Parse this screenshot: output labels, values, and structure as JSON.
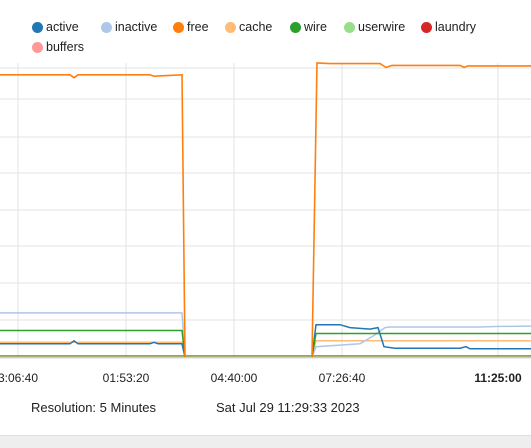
{
  "chart_data": {
    "type": "line",
    "title": "",
    "xlabel": "",
    "ylabel": "",
    "legend_position": "top",
    "grid": true,
    "x_ticks": [
      "3:06:40",
      "01:53:20",
      "04:40:00",
      "07:26:40",
      "11:25:00"
    ],
    "x_ticks_bold": [
      false,
      false,
      false,
      false,
      true
    ],
    "series": [
      {
        "name": "active",
        "color": "#1f77b4",
        "segments": [
          [
            [
              0,
              0.045
            ],
            [
              70,
              0.045
            ],
            [
              74,
              0.055
            ],
            [
              78,
              0.045
            ],
            [
              150,
              0.045
            ],
            [
              154,
              0.05
            ],
            [
              158,
              0.045
            ],
            [
              182,
              0.045
            ],
            [
              185,
              0
            ]
          ],
          [
            [
              312,
              0
            ],
            [
              316,
              0.11
            ],
            [
              340,
              0.11
            ],
            [
              350,
              0.1
            ],
            [
              370,
              0.095
            ],
            [
              378,
              0.1
            ],
            [
              384,
              0.035
            ],
            [
              395,
              0.03
            ],
            [
              460,
              0.03
            ],
            [
              466,
              0.035
            ],
            [
              470,
              0.028
            ],
            [
              531,
              0.028
            ]
          ]
        ]
      },
      {
        "name": "inactive",
        "color": "#aec7e8",
        "segments": [
          [
            [
              0,
              0.15
            ],
            [
              182,
              0.15
            ],
            [
              185,
              0
            ]
          ],
          [
            [
              312,
              0
            ],
            [
              316,
              0.035
            ],
            [
              360,
              0.045
            ],
            [
              375,
              0.075
            ],
            [
              385,
              0.1
            ],
            [
              390,
              0.102
            ],
            [
              480,
              0.102
            ],
            [
              500,
              0.104
            ],
            [
              531,
              0.105
            ]
          ]
        ]
      },
      {
        "name": "free",
        "color": "#ff7f0e",
        "segments": [
          [
            [
              0,
              0.96
            ],
            [
              70,
              0.96
            ],
            [
              74,
              0.95
            ],
            [
              78,
              0.96
            ],
            [
              150,
              0.96
            ],
            [
              154,
              0.955
            ],
            [
              182,
              0.96
            ],
            [
              185,
              0
            ]
          ],
          [
            [
              312,
              0
            ],
            [
              317,
              1.0
            ],
            [
              330,
              0.998
            ],
            [
              380,
              0.998
            ],
            [
              386,
              0.985
            ],
            [
              392,
              0.992
            ],
            [
              460,
              0.992
            ],
            [
              464,
              0.985
            ],
            [
              468,
              0.99
            ],
            [
              531,
              0.99
            ]
          ]
        ]
      },
      {
        "name": "cache",
        "color": "#ffbb78",
        "segments": [
          [
            [
              0,
              0.05
            ],
            [
              182,
              0.05
            ],
            [
              185,
              0
            ]
          ],
          [
            [
              312,
              0
            ],
            [
              316,
              0.055
            ],
            [
              531,
              0.055
            ]
          ]
        ]
      },
      {
        "name": "wire",
        "color": "#2ca02c",
        "segments": [
          [
            [
              0,
              0.09
            ],
            [
              182,
              0.09
            ],
            [
              185,
              0
            ]
          ],
          [
            [
              312,
              0
            ],
            [
              316,
              0.08
            ],
            [
              531,
              0.08
            ]
          ]
        ]
      },
      {
        "name": "userwire",
        "color": "#98df8a",
        "segments": [
          [
            [
              0,
              0.0
            ],
            [
              531,
              0.0
            ]
          ]
        ]
      },
      {
        "name": "laundry",
        "color": "#d62728",
        "segments": [
          [
            [
              0,
              0.003
            ],
            [
              531,
              0.003
            ]
          ]
        ]
      },
      {
        "name": "buffers",
        "color": "#ff9896",
        "segments": [
          [
            [
              0,
              0.001
            ],
            [
              531,
              0.001
            ]
          ]
        ]
      }
    ]
  },
  "footer": {
    "resolution": "Resolution: 5 Minutes",
    "timestamp": "Sat Jul 29 11:29:33 2023"
  }
}
